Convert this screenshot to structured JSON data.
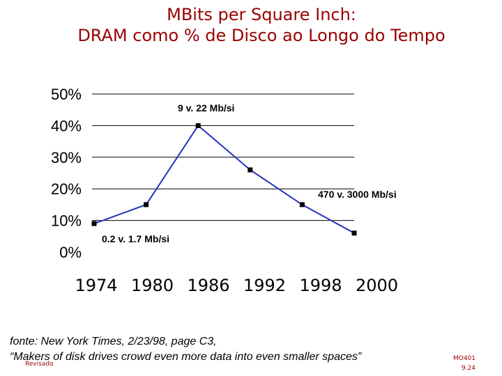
{
  "slide": {
    "title_line1": "MBits per Square Inch:",
    "title_line2": "DRAM como % de Disco ao Longo do Tempo",
    "source_line1": "fonte: New York Times, 2/23/98, page C3,",
    "source_line2": "“Makers of disk drives crowd even more data into even smaller spaces”",
    "footer_left_top": "",
    "footer_left": "Revisado",
    "footer_right_line1": "MO401",
    "footer_right_line2": "9.24",
    "colors": {
      "title": "#990000",
      "line": "#2233bb",
      "marker": "#000000",
      "grid": "#000000"
    }
  },
  "chart_data": {
    "type": "line",
    "x": [
      "1974",
      "1980",
      "1986",
      "1992",
      "1998",
      "2000"
    ],
    "series": [
      {
        "values": [
          0.09,
          0.15,
          0.4,
          0.26,
          0.15,
          0.06
        ]
      }
    ],
    "ylim": [
      0,
      0.5
    ],
    "yticks": [
      "0%",
      "10%",
      "20%",
      "30%",
      "40%",
      "50%"
    ],
    "grid": true,
    "annotations": [
      {
        "text": "9  v. 22 Mb/si",
        "near_x": "1986"
      },
      {
        "text": "470 v. 3000 Mb/si",
        "near_x": "1998"
      },
      {
        "text": "0.2  v. 1.7 Mb/si",
        "near_x": "1980"
      }
    ],
    "title": "",
    "xlabel": "",
    "ylabel": ""
  }
}
